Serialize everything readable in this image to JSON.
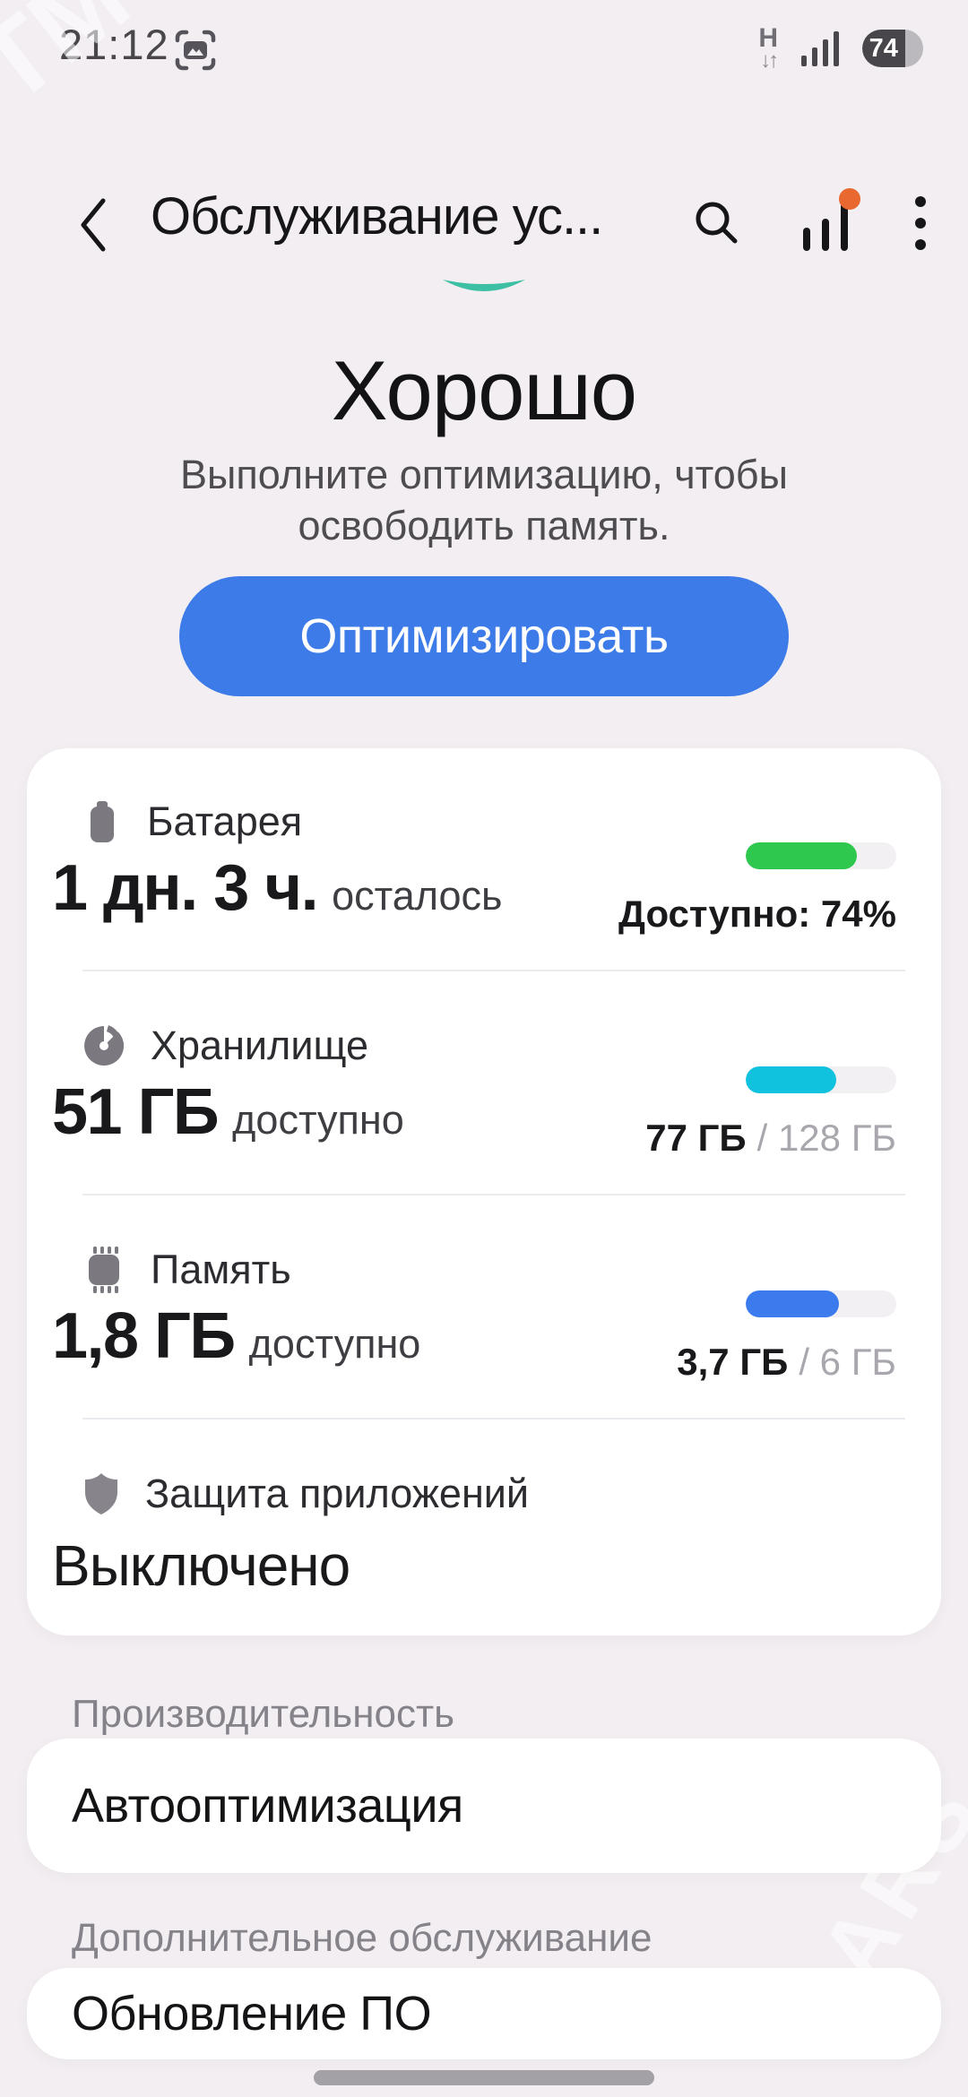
{
  "watermark": {
    "top_left": "TM",
    "right": "ARS"
  },
  "status_bar": {
    "time": "21:12",
    "network_type": "H",
    "network_arrows": "↓↑",
    "battery_percent": "74",
    "battery_fill_percent": 70
  },
  "header": {
    "title": "Обслуживание ус..."
  },
  "score": {
    "status": "Хорошо",
    "subtitle": "Выполните оптимизацию, чтобы освободить память.",
    "arc_color": "#3DBFA4"
  },
  "optimize": {
    "label": "Оптимизировать",
    "color": "#3D7BE9"
  },
  "device_card": {
    "battery": {
      "label": "Батарея",
      "value": "1 дн. 3 ч.",
      "suffix": "осталось",
      "available": "Доступно: 74%",
      "percent": 74,
      "color": "#2FC84E"
    },
    "storage": {
      "label": "Хранилище",
      "value": "51 ГБ",
      "suffix": "доступно",
      "used": "77 ГБ",
      "total": "/ 128 ГБ",
      "percent": 60,
      "color": "#11C2DE"
    },
    "memory": {
      "label": "Память",
      "value": "1,8 ГБ",
      "suffix": "доступно",
      "used": "3,7 ГБ",
      "total": "/ 6 ГБ",
      "percent": 62,
      "color": "#3C7BEE"
    },
    "protection": {
      "label": "Защита приложений",
      "value": "Выключено"
    }
  },
  "sections": {
    "performance": {
      "header": "Производительность",
      "item": "Автооптимизация"
    },
    "additional": {
      "header": "Дополнительное обслуживание",
      "item": "Обновление ПО"
    }
  }
}
